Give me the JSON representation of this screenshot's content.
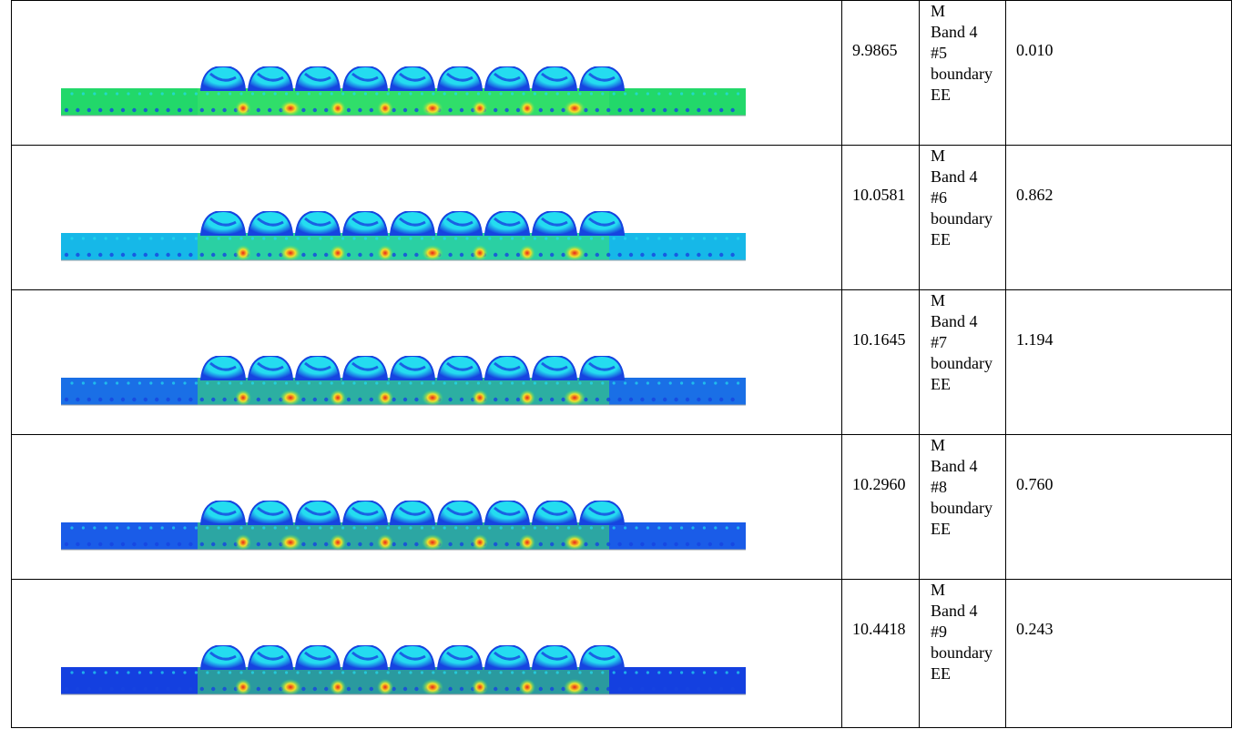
{
  "rows": [
    {
      "freq": "9.9865",
      "desc": [
        "M",
        "Band 4",
        "#5",
        "boundary",
        "EE"
      ],
      "value": "0.010",
      "bg": "#22d86a"
    },
    {
      "freq": "10.0581",
      "desc": [
        "M",
        "Band 4",
        "#6",
        "boundary",
        "EE"
      ],
      "value": "0.862",
      "bg": "#16b8e8"
    },
    {
      "freq": "10.1645",
      "desc": [
        "M",
        "Band 4",
        "#7",
        "boundary",
        "EE"
      ],
      "value": "1.194",
      "bg": "#1a6fe6"
    },
    {
      "freq": "10.2960",
      "desc": [
        "M",
        "Band 4",
        "#8",
        "boundary",
        "EE"
      ],
      "value": "0.760",
      "bg": "#1a5ce8"
    },
    {
      "freq": "10.4418",
      "desc": [
        "M",
        "Band 4",
        "#9",
        "boundary",
        "EE"
      ],
      "value": "0.243",
      "bg": "#1440e0"
    }
  ],
  "colors": {
    "cyan": "#24dcf0",
    "blue": "#1644e0",
    "green": "#3ce36a",
    "yellow": "#f4e02a",
    "red": "#e8221a"
  }
}
